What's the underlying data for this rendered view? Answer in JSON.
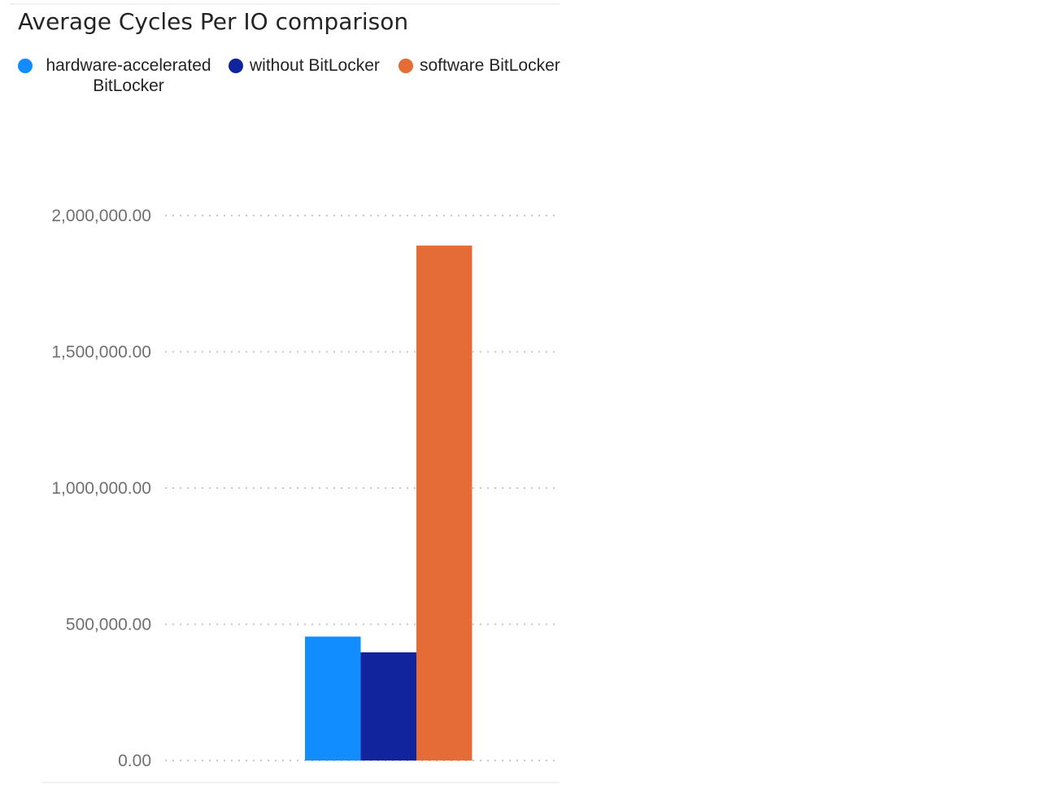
{
  "chart_data": {
    "type": "bar",
    "title": "Average Cycles Per IO comparison",
    "xlabel": "",
    "ylabel": "",
    "ylim": [
      0,
      2000000
    ],
    "yticks": [
      0,
      500000,
      1000000,
      1500000,
      2000000
    ],
    "ytick_labels": [
      "0.00",
      "500,000.00",
      "1,000,000.00",
      "1,500,000.00",
      "2,000,000.00"
    ],
    "grid": true,
    "legend_position": "top-left",
    "series": [
      {
        "name": "hardware-accelerated BitLocker",
        "values": [
          455000
        ],
        "color": "#118DFF"
      },
      {
        "name": "without BitLocker",
        "values": [
          397000
        ],
        "color": "#12239E"
      },
      {
        "name": "software BitLocker",
        "values": [
          1890000
        ],
        "color": "#E66C37"
      }
    ]
  }
}
